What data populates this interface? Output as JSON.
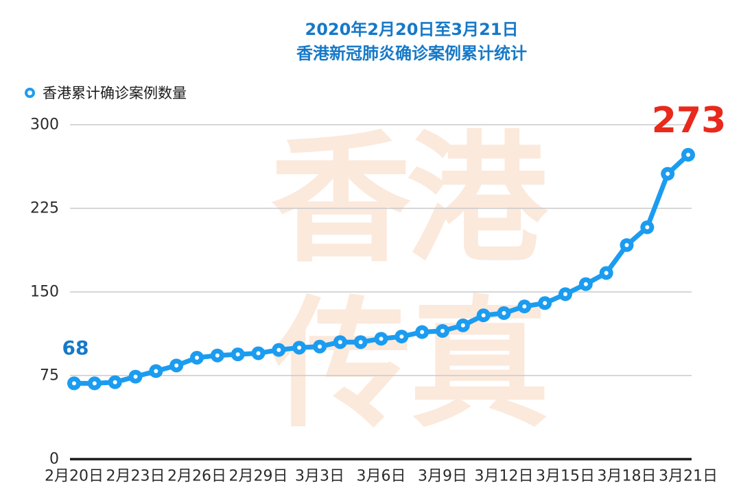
{
  "title": {
    "line1": "2020年2月20日至3月21日",
    "line2": "香港新冠肺炎确诊案例累计统计"
  },
  "legend": {
    "marker_icon": "ring-marker-icon",
    "label": "香港累计确诊案例数量"
  },
  "annotations": {
    "first_value_label": "68",
    "last_value_label": "273"
  },
  "watermark": {
    "text": "香港传真",
    "chars": [
      "香",
      "港",
      "传",
      "真"
    ],
    "color": "#FBE9DC"
  },
  "colors": {
    "title_blue": "#1679C8",
    "line_blue": "#1B9CF0",
    "annotation_red": "#E8291C",
    "axis_text": "#2B2B2B",
    "gridline": "#C9C9C9",
    "axis_line": "#1A1A1A"
  },
  "chart_data": {
    "type": "line",
    "title": "2020年2月20日至3月21日 香港新冠肺炎确诊案例累计统计",
    "series_name": "香港累计确诊案例数量",
    "x": [
      "2月20日",
      "2月21日",
      "2月22日",
      "2月23日",
      "2月24日",
      "2月25日",
      "2月26日",
      "2月27日",
      "2月28日",
      "2月29日",
      "3月1日",
      "3月2日",
      "3月3日",
      "3月4日",
      "3月5日",
      "3月6日",
      "3月7日",
      "3月8日",
      "3月9日",
      "3月10日",
      "3月11日",
      "3月12日",
      "3月13日",
      "3月14日",
      "3月15日",
      "3月16日",
      "3月17日",
      "3月18日",
      "3月19日",
      "3月20日",
      "3月21日"
    ],
    "values": [
      68,
      68,
      69,
      74,
      79,
      84,
      91,
      93,
      94,
      95,
      98,
      100,
      101,
      105,
      105,
      108,
      110,
      114,
      115,
      120,
      129,
      131,
      137,
      140,
      148,
      157,
      167,
      192,
      208,
      256,
      273
    ],
    "x_tick_labels": [
      "2月20日",
      "2月23日",
      "2月26日",
      "2月29日",
      "3月3日",
      "3月6日",
      "3月9日",
      "3月12日",
      "3月15日",
      "3月18日",
      "3月21日"
    ],
    "x_tick_every": 3,
    "y_ticks": [
      0,
      75,
      150,
      225,
      300
    ],
    "ylim": [
      0,
      300
    ],
    "xlabel": "",
    "ylabel": "",
    "grid": "horizontal",
    "legend_position": "top-left",
    "marker": "filled circle with white center dot",
    "line_color": "#1B9CF0"
  }
}
